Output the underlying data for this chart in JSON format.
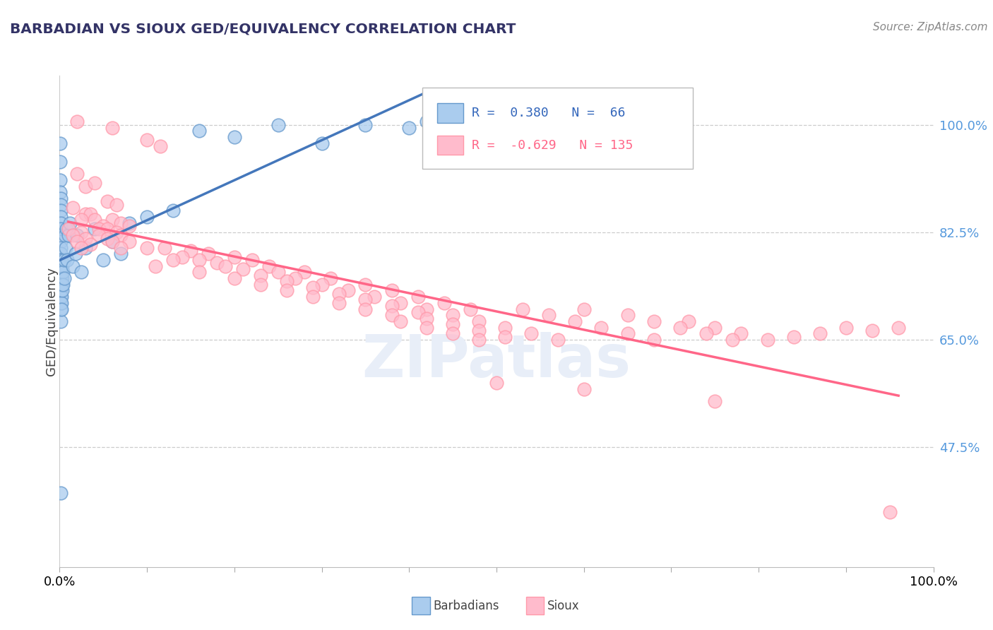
{
  "title": "BARBADIAN VS SIOUX GED/EQUIVALENCY CORRELATION CHART",
  "source": "Source: ZipAtlas.com",
  "ylabel": "GED/Equivalency",
  "yticks": [
    0.475,
    0.65,
    0.825,
    1.0
  ],
  "ytick_labels": [
    "47.5%",
    "65.0%",
    "82.5%",
    "100.0%"
  ],
  "xlim": [
    0.0,
    1.0
  ],
  "ylim": [
    0.28,
    1.08
  ],
  "legend_R_blue": "0.380",
  "legend_N_blue": "66",
  "legend_R_pink": "-0.629",
  "legend_N_pink": "135",
  "blue_fill": "#AACCEE",
  "blue_edge": "#6699CC",
  "pink_fill": "#FFBBCC",
  "pink_edge": "#FF99AA",
  "blue_line": "#4477BB",
  "pink_line": "#FF6688",
  "watermark": "ZIPatlas",
  "blue_scatter": [
    [
      0.0005,
      0.97
    ],
    [
      0.0005,
      0.94
    ],
    [
      0.0005,
      0.91
    ],
    [
      0.0005,
      0.89
    ],
    [
      0.001,
      0.88
    ],
    [
      0.001,
      0.87
    ],
    [
      0.001,
      0.86
    ],
    [
      0.001,
      0.85
    ],
    [
      0.001,
      0.84
    ],
    [
      0.001,
      0.83
    ],
    [
      0.001,
      0.82
    ],
    [
      0.001,
      0.81
    ],
    [
      0.001,
      0.8
    ],
    [
      0.001,
      0.79
    ],
    [
      0.001,
      0.78
    ],
    [
      0.001,
      0.77
    ],
    [
      0.001,
      0.76
    ],
    [
      0.001,
      0.75
    ],
    [
      0.001,
      0.74
    ],
    [
      0.001,
      0.73
    ],
    [
      0.001,
      0.72
    ],
    [
      0.001,
      0.71
    ],
    [
      0.001,
      0.7
    ],
    [
      0.001,
      0.4
    ],
    [
      0.0015,
      0.68
    ],
    [
      0.002,
      0.78
    ],
    [
      0.002,
      0.76
    ],
    [
      0.002,
      0.75
    ],
    [
      0.002,
      0.74
    ],
    [
      0.002,
      0.72
    ],
    [
      0.002,
      0.71
    ],
    [
      0.002,
      0.7
    ],
    [
      0.003,
      0.77
    ],
    [
      0.003,
      0.75
    ],
    [
      0.003,
      0.74
    ],
    [
      0.003,
      0.73
    ],
    [
      0.004,
      0.76
    ],
    [
      0.004,
      0.74
    ],
    [
      0.005,
      0.78
    ],
    [
      0.005,
      0.75
    ],
    [
      0.006,
      0.82
    ],
    [
      0.007,
      0.8
    ],
    [
      0.008,
      0.83
    ],
    [
      0.009,
      0.78
    ],
    [
      0.01,
      0.82
    ],
    [
      0.012,
      0.84
    ],
    [
      0.015,
      0.77
    ],
    [
      0.018,
      0.79
    ],
    [
      0.02,
      0.82
    ],
    [
      0.025,
      0.76
    ],
    [
      0.03,
      0.8
    ],
    [
      0.04,
      0.83
    ],
    [
      0.05,
      0.78
    ],
    [
      0.06,
      0.81
    ],
    [
      0.07,
      0.79
    ],
    [
      0.08,
      0.84
    ],
    [
      0.1,
      0.85
    ],
    [
      0.13,
      0.86
    ],
    [
      0.16,
      0.99
    ],
    [
      0.2,
      0.98
    ],
    [
      0.25,
      1.0
    ],
    [
      0.3,
      0.97
    ],
    [
      0.35,
      1.0
    ],
    [
      0.4,
      0.995
    ],
    [
      0.42,
      1.005
    ]
  ],
  "pink_scatter": [
    [
      0.02,
      1.005
    ],
    [
      0.06,
      0.995
    ],
    [
      0.1,
      0.975
    ],
    [
      0.115,
      0.965
    ],
    [
      0.02,
      0.92
    ],
    [
      0.03,
      0.9
    ],
    [
      0.04,
      0.905
    ],
    [
      0.055,
      0.875
    ],
    [
      0.065,
      0.87
    ],
    [
      0.015,
      0.865
    ],
    [
      0.03,
      0.855
    ],
    [
      0.035,
      0.855
    ],
    [
      0.025,
      0.845
    ],
    [
      0.04,
      0.845
    ],
    [
      0.06,
      0.845
    ],
    [
      0.07,
      0.84
    ],
    [
      0.05,
      0.835
    ],
    [
      0.08,
      0.835
    ],
    [
      0.01,
      0.83
    ],
    [
      0.045,
      0.83
    ],
    [
      0.055,
      0.83
    ],
    [
      0.025,
      0.825
    ],
    [
      0.065,
      0.825
    ],
    [
      0.015,
      0.82
    ],
    [
      0.045,
      0.82
    ],
    [
      0.07,
      0.82
    ],
    [
      0.03,
      0.815
    ],
    [
      0.055,
      0.815
    ],
    [
      0.02,
      0.81
    ],
    [
      0.06,
      0.81
    ],
    [
      0.08,
      0.81
    ],
    [
      0.035,
      0.805
    ],
    [
      0.025,
      0.8
    ],
    [
      0.07,
      0.8
    ],
    [
      0.1,
      0.8
    ],
    [
      0.12,
      0.8
    ],
    [
      0.15,
      0.795
    ],
    [
      0.17,
      0.79
    ],
    [
      0.14,
      0.785
    ],
    [
      0.2,
      0.785
    ],
    [
      0.13,
      0.78
    ],
    [
      0.16,
      0.78
    ],
    [
      0.22,
      0.78
    ],
    [
      0.18,
      0.775
    ],
    [
      0.11,
      0.77
    ],
    [
      0.19,
      0.77
    ],
    [
      0.24,
      0.77
    ],
    [
      0.21,
      0.765
    ],
    [
      0.16,
      0.76
    ],
    [
      0.25,
      0.76
    ],
    [
      0.28,
      0.76
    ],
    [
      0.23,
      0.755
    ],
    [
      0.2,
      0.75
    ],
    [
      0.27,
      0.75
    ],
    [
      0.31,
      0.75
    ],
    [
      0.26,
      0.745
    ],
    [
      0.23,
      0.74
    ],
    [
      0.3,
      0.74
    ],
    [
      0.35,
      0.74
    ],
    [
      0.29,
      0.735
    ],
    [
      0.26,
      0.73
    ],
    [
      0.33,
      0.73
    ],
    [
      0.38,
      0.73
    ],
    [
      0.32,
      0.725
    ],
    [
      0.29,
      0.72
    ],
    [
      0.36,
      0.72
    ],
    [
      0.41,
      0.72
    ],
    [
      0.35,
      0.715
    ],
    [
      0.32,
      0.71
    ],
    [
      0.39,
      0.71
    ],
    [
      0.44,
      0.71
    ],
    [
      0.38,
      0.705
    ],
    [
      0.35,
      0.7
    ],
    [
      0.42,
      0.7
    ],
    [
      0.47,
      0.7
    ],
    [
      0.53,
      0.7
    ],
    [
      0.6,
      0.7
    ],
    [
      0.41,
      0.695
    ],
    [
      0.38,
      0.69
    ],
    [
      0.45,
      0.69
    ],
    [
      0.56,
      0.69
    ],
    [
      0.65,
      0.69
    ],
    [
      0.42,
      0.685
    ],
    [
      0.39,
      0.68
    ],
    [
      0.48,
      0.68
    ],
    [
      0.59,
      0.68
    ],
    [
      0.68,
      0.68
    ],
    [
      0.72,
      0.68
    ],
    [
      0.45,
      0.675
    ],
    [
      0.42,
      0.67
    ],
    [
      0.51,
      0.67
    ],
    [
      0.62,
      0.67
    ],
    [
      0.71,
      0.67
    ],
    [
      0.75,
      0.67
    ],
    [
      0.48,
      0.665
    ],
    [
      0.45,
      0.66
    ],
    [
      0.54,
      0.66
    ],
    [
      0.65,
      0.66
    ],
    [
      0.74,
      0.66
    ],
    [
      0.78,
      0.66
    ],
    [
      0.51,
      0.655
    ],
    [
      0.48,
      0.65
    ],
    [
      0.57,
      0.65
    ],
    [
      0.68,
      0.65
    ],
    [
      0.77,
      0.65
    ],
    [
      0.81,
      0.65
    ],
    [
      0.84,
      0.655
    ],
    [
      0.87,
      0.66
    ],
    [
      0.9,
      0.67
    ],
    [
      0.93,
      0.665
    ],
    [
      0.96,
      0.67
    ],
    [
      0.5,
      0.58
    ],
    [
      0.6,
      0.57
    ],
    [
      0.75,
      0.55
    ],
    [
      0.95,
      0.37
    ]
  ]
}
